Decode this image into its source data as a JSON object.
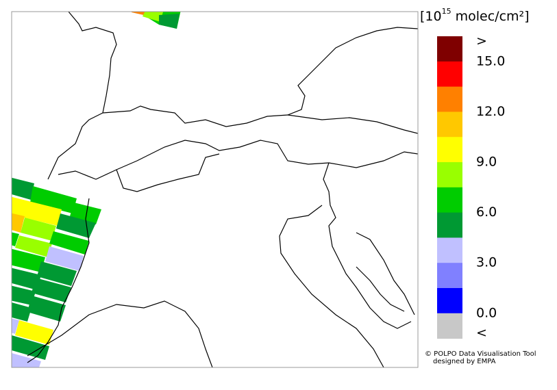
{
  "legend": {
    "unit": {
      "prefix": "[10",
      "exponent": "15",
      "suffix": " molec/cm²]"
    },
    "colors": [
      "#7f0000",
      "#ff0000",
      "#ff8000",
      "#ffc800",
      "#ffff00",
      "#99ff00",
      "#00cc00",
      "#009933",
      "#c0c0ff",
      "#8080ff",
      "#0000ff",
      "#c8c8c8"
    ],
    "labels": [
      ">",
      "15.0",
      "12.0",
      "9.0",
      "6.0",
      "3.0",
      "0.0",
      "<"
    ]
  },
  "credit": {
    "line1": "© POLPO Data Visualisation Tool",
    "line2": "designed by EMPA"
  }
}
